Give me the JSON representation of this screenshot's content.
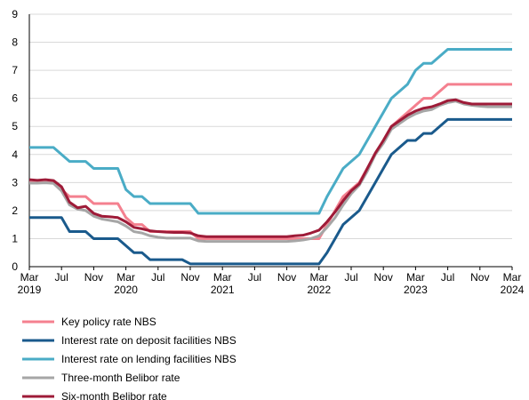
{
  "chart_data": {
    "type": "line",
    "categories": [
      "Mar 2019",
      null,
      null,
      null,
      "Jul",
      null,
      null,
      null,
      "Nov",
      null,
      null,
      null,
      "Mar 2020",
      null,
      null,
      null,
      "Jul",
      null,
      null,
      null,
      "Nov",
      null,
      null,
      null,
      "Mar 2021",
      null,
      null,
      null,
      "Jul",
      null,
      null,
      null,
      "Nov",
      null,
      null,
      null,
      "Mar 2022",
      null,
      null,
      null,
      "Jul",
      null,
      null,
      null,
      "Nov",
      null,
      null,
      null,
      "Mar 2023",
      null,
      null,
      null,
      "Jul",
      null,
      null,
      null,
      "Nov",
      null,
      null,
      null,
      "Mar 2024"
    ],
    "series": [
      {
        "name": "Key policy rate NBS",
        "color": "#f4808f",
        "values": [
          3,
          3,
          3,
          3,
          2.75,
          2.5,
          2.5,
          2.5,
          2.25,
          2.25,
          2.25,
          2.25,
          1.75,
          1.5,
          1.5,
          1.25,
          1.25,
          1.25,
          1.25,
          1.25,
          1.25,
          1,
          1,
          1,
          1,
          1,
          1,
          1,
          1,
          1,
          1,
          1,
          1,
          1,
          1,
          1,
          1,
          1.5,
          2,
          2.5,
          2.75,
          3,
          3.5,
          4,
          4.5,
          5,
          5.25,
          5.5,
          5.75,
          6,
          6,
          6.25,
          6.5,
          6.5,
          6.5,
          6.5,
          6.5,
          6.5,
          6.5,
          6.5,
          6.5
        ]
      },
      {
        "name": "Interest rate on deposit facilities NBS",
        "color": "#1a5a8c",
        "values": [
          1.75,
          1.75,
          1.75,
          1.75,
          1.75,
          1.25,
          1.25,
          1.25,
          1,
          1,
          1,
          1,
          0.75,
          0.5,
          0.5,
          0.25,
          0.25,
          0.25,
          0.25,
          0.25,
          0.1,
          0.1,
          0.1,
          0.1,
          0.1,
          0.1,
          0.1,
          0.1,
          0.1,
          0.1,
          0.1,
          0.1,
          0.1,
          0.1,
          0.1,
          0.1,
          0.1,
          0.5,
          1,
          1.5,
          1.75,
          2,
          2.5,
          3,
          3.5,
          4,
          4.25,
          4.5,
          4.5,
          4.75,
          4.75,
          5,
          5.25,
          5.25,
          5.25,
          5.25,
          5.25,
          5.25,
          5.25,
          5.25,
          5.25
        ]
      },
      {
        "name": "Interest rate on lending facilities NBS",
        "color": "#4aacc6",
        "values": [
          4.25,
          4.25,
          4.25,
          4.25,
          4,
          3.75,
          3.75,
          3.75,
          3.5,
          3.5,
          3.5,
          3.5,
          2.75,
          2.5,
          2.5,
          2.25,
          2.25,
          2.25,
          2.25,
          2.25,
          2.25,
          1.9,
          1.9,
          1.9,
          1.9,
          1.9,
          1.9,
          1.9,
          1.9,
          1.9,
          1.9,
          1.9,
          1.9,
          1.9,
          1.9,
          1.9,
          1.9,
          2.5,
          3,
          3.5,
          3.75,
          4,
          4.5,
          5,
          5.5,
          6,
          6.25,
          6.5,
          7,
          7.25,
          7.25,
          7.5,
          7.75,
          7.75,
          7.75,
          7.75,
          7.75,
          7.75,
          7.75,
          7.75,
          7.75
        ]
      },
      {
        "name": "Three-month Belibor rate",
        "color": "#a6a6a6",
        "values": [
          2.98,
          2.98,
          2.99,
          2.97,
          2.7,
          2.2,
          2.05,
          2,
          1.8,
          1.7,
          1.65,
          1.6,
          1.45,
          1.25,
          1.2,
          1.1,
          1.05,
          1.02,
          1.02,
          1.02,
          1.02,
          0.92,
          0.9,
          0.9,
          0.9,
          0.9,
          0.9,
          0.9,
          0.9,
          0.9,
          0.9,
          0.9,
          0.9,
          0.92,
          0.95,
          1,
          1.1,
          1.4,
          1.75,
          2.2,
          2.6,
          2.9,
          3.4,
          4,
          4.4,
          4.9,
          5.1,
          5.3,
          5.45,
          5.55,
          5.6,
          5.75,
          5.85,
          5.9,
          5.8,
          5.75,
          5.72,
          5.7,
          5.7,
          5.7,
          5.7
        ]
      },
      {
        "name": "Six-month Belibor rate",
        "color": "#9e1b38",
        "values": [
          3.1,
          3.08,
          3.1,
          3.07,
          2.85,
          2.3,
          2.1,
          2.15,
          1.9,
          1.8,
          1.78,
          1.75,
          1.6,
          1.4,
          1.35,
          1.28,
          1.25,
          1.23,
          1.22,
          1.22,
          1.2,
          1.1,
          1.07,
          1.07,
          1.07,
          1.07,
          1.07,
          1.07,
          1.07,
          1.07,
          1.07,
          1.07,
          1.07,
          1.1,
          1.12,
          1.2,
          1.3,
          1.6,
          1.95,
          2.35,
          2.7,
          2.95,
          3.5,
          4.05,
          4.5,
          5,
          5.2,
          5.4,
          5.55,
          5.65,
          5.7,
          5.8,
          5.92,
          5.95,
          5.85,
          5.8,
          5.8,
          5.8,
          5.8,
          5.8,
          5.8
        ]
      }
    ],
    "ylim": [
      0,
      9
    ],
    "yticks": [
      0,
      1,
      2,
      3,
      4,
      5,
      6,
      7,
      8,
      9
    ],
    "grid": true
  }
}
